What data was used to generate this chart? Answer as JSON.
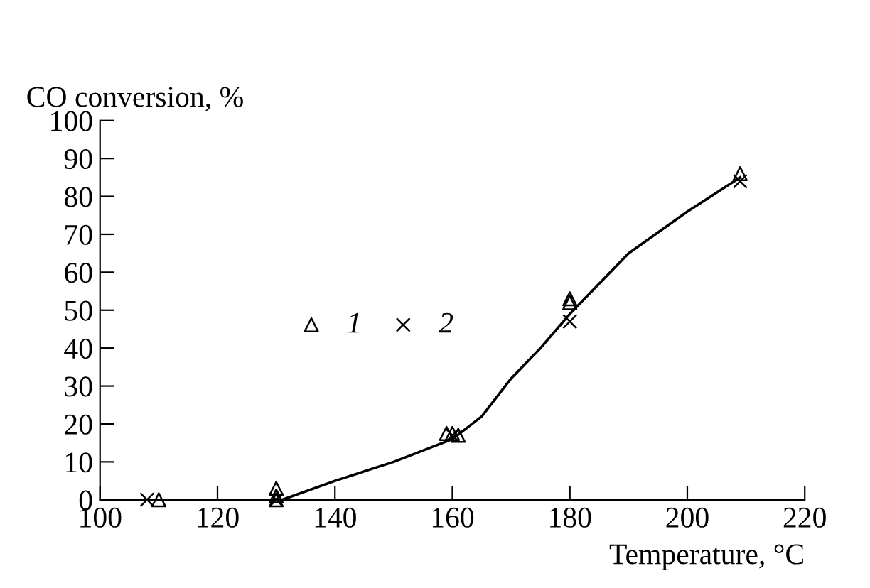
{
  "chart_data": {
    "type": "scatter",
    "xlabel": "Temperature, °C",
    "ylabel": "CO conversion, %",
    "xlim": [
      100,
      220
    ],
    "xticks": [
      100,
      120,
      140,
      160,
      180,
      200,
      220
    ],
    "ylim": [
      0,
      100
    ],
    "yticks": [
      0,
      10,
      20,
      30,
      40,
      50,
      60,
      70,
      80,
      90,
      100
    ],
    "grid": false,
    "legend": "left",
    "series": [
      {
        "name": "1",
        "marker": "triangle",
        "color": "#000000",
        "x": [
          110,
          130,
          130,
          130,
          159,
          160,
          161,
          180,
          180,
          209
        ],
        "values": [
          0,
          3,
          1,
          0,
          17.5,
          17.5,
          17,
          53,
          52,
          86
        ]
      },
      {
        "name": "2",
        "marker": "cross",
        "color": "#000000",
        "x": [
          108,
          130,
          160,
          180,
          209
        ],
        "values": [
          0,
          0,
          17,
          47,
          84
        ]
      },
      {
        "type": "line",
        "marker": "none",
        "line_style": "solid",
        "color": "#000000",
        "x": [
          131,
          140,
          150,
          160,
          165,
          170,
          175,
          180,
          190,
          200,
          209
        ],
        "values": [
          0,
          5,
          10,
          16,
          22,
          32,
          40,
          49,
          65,
          76,
          85
        ]
      }
    ]
  }
}
